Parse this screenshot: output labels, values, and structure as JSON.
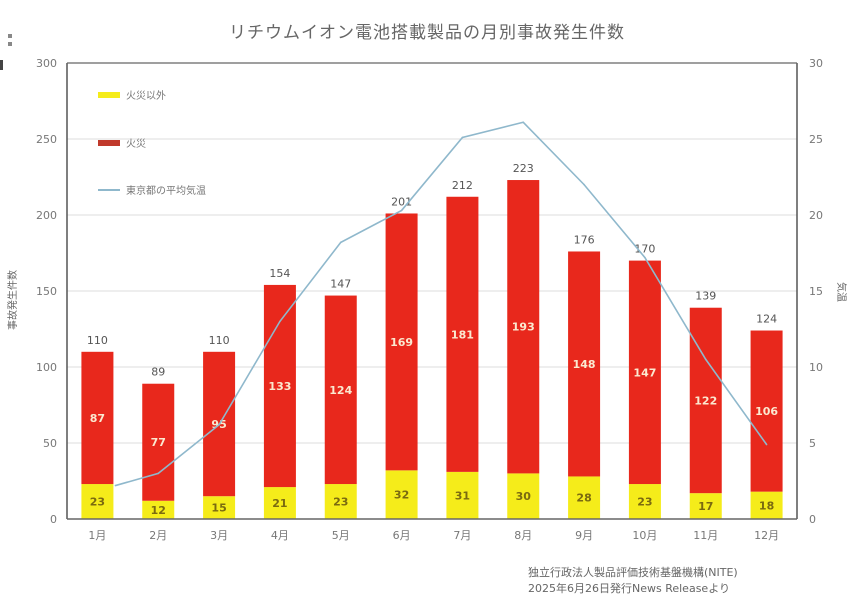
{
  "chart_data": {
    "type": "bar",
    "stacked": true,
    "title": "リチウムイオン電池搭載製品の月別事故発生件数",
    "categories": [
      "1月",
      "2月",
      "3月",
      "4月",
      "5月",
      "6月",
      "7月",
      "8月",
      "9月",
      "10月",
      "11月",
      "12月"
    ],
    "series": [
      {
        "name": "火災以外",
        "type": "bar",
        "axis": "left",
        "color": "#f5ec1a",
        "values": [
          23,
          12,
          15,
          21,
          23,
          32,
          31,
          30,
          28,
          23,
          17,
          18
        ]
      },
      {
        "name": "火災",
        "type": "bar",
        "axis": "left",
        "color": "#e8281c",
        "values": [
          87,
          77,
          95,
          133,
          124,
          169,
          181,
          193,
          148,
          147,
          122,
          106
        ]
      },
      {
        "name": "東京都の平均気温",
        "type": "line",
        "axis": "right",
        "color": "#8fb8cc",
        "values": [
          2.2,
          3.0,
          6.2,
          13.0,
          18.2,
          20.3,
          25.1,
          26.1,
          22.0,
          17.2,
          10.5,
          4.9
        ]
      }
    ],
    "totals": [
      110,
      89,
      110,
      154,
      147,
      201,
      212,
      223,
      176,
      170,
      139,
      124
    ],
    "ylabel": "事故発生件数",
    "y2label": "気温",
    "ylim": [
      0,
      300
    ],
    "y2lim": [
      0,
      30
    ],
    "yticks": [
      "0",
      "50",
      "100",
      "150",
      "200",
      "250",
      "300"
    ],
    "y2ticks": [
      "0",
      "5",
      "10",
      "15",
      "20",
      "25",
      "30"
    ],
    "grid": true,
    "legend_position": "top-left"
  },
  "source": {
    "line1": "独立行政法人製品評価技術基盤機構(NITE)",
    "line2": "2025年6月26日発行News Releaseより"
  }
}
